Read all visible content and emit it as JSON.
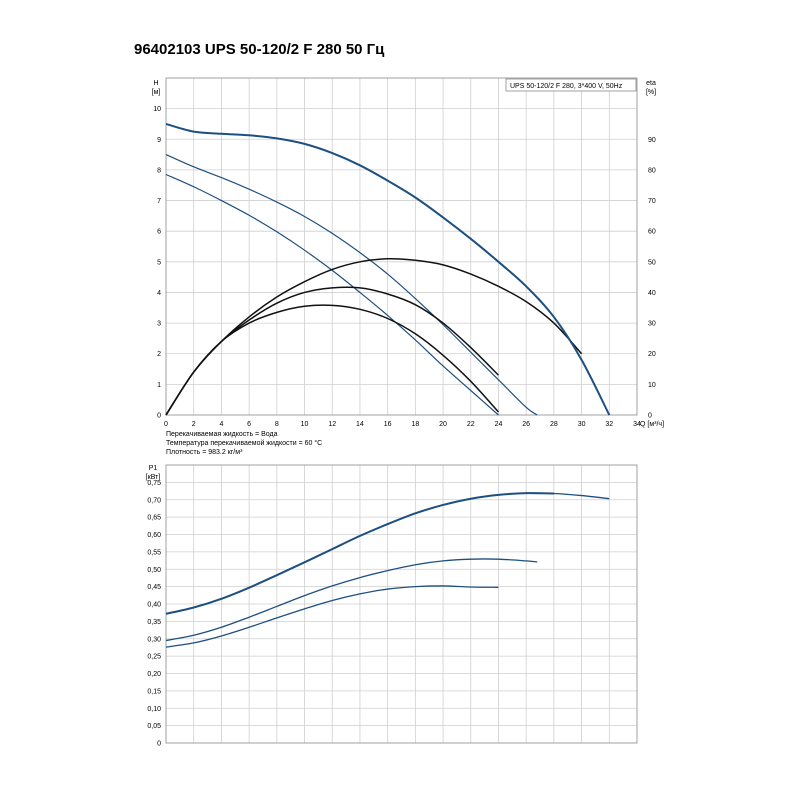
{
  "title": "96402103 UPS 50-120/2 F 280 50 Гц",
  "colors": {
    "head": "#1d4f80",
    "eta": "#111111",
    "power": "#1d4f80",
    "grid": "#cfcfcf"
  },
  "chart_data": [
    {
      "type": "line",
      "x_label": "Q [м³/ч]",
      "y_label": [
        "H",
        "[м]"
      ],
      "y2_label": [
        "eta",
        "[%]"
      ],
      "legend_box": "UPS 50-120/2 F 280, 3*400 V, 50Hz",
      "xlim": [
        0,
        34
      ],
      "ylim": [
        0,
        11
      ],
      "y2lim": [
        0,
        110
      ],
      "x_ticks": [
        0,
        2,
        4,
        6,
        8,
        10,
        12,
        14,
        16,
        18,
        20,
        22,
        24,
        26,
        28,
        30,
        32,
        34
      ],
      "y_ticks": [
        0,
        1,
        2,
        3,
        4,
        5,
        6,
        7,
        8,
        9,
        10
      ],
      "y2_ticks": [
        0,
        10,
        20,
        30,
        40,
        50,
        60,
        70,
        80,
        90
      ],
      "grid": true,
      "series": [
        {
          "axis": "left",
          "kind": "head",
          "x": [
            0,
            2,
            4,
            6,
            8,
            10,
            12,
            14,
            16,
            18,
            20,
            22,
            24,
            26,
            28,
            30,
            32
          ],
          "y": [
            9.5,
            9.25,
            9.18,
            9.13,
            9.03,
            8.85,
            8.55,
            8.15,
            7.65,
            7.1,
            6.45,
            5.75,
            5.0,
            4.2,
            3.2,
            1.8,
            0
          ]
        },
        {
          "axis": "left",
          "kind": "head",
          "x": [
            0,
            2,
            4,
            6,
            8,
            10,
            12,
            14,
            16,
            18,
            20,
            22,
            24,
            26,
            26.8
          ],
          "y": [
            8.5,
            8.1,
            7.75,
            7.37,
            6.95,
            6.48,
            5.93,
            5.3,
            4.6,
            3.8,
            2.95,
            2.05,
            1.15,
            0.25,
            0
          ]
        },
        {
          "axis": "left",
          "kind": "head",
          "x": [
            0,
            2,
            4,
            6,
            8,
            10,
            12,
            14,
            16,
            18,
            20,
            22,
            24
          ],
          "y": [
            7.85,
            7.45,
            7.0,
            6.52,
            5.98,
            5.38,
            4.72,
            4.0,
            3.25,
            2.45,
            1.6,
            0.8,
            0
          ]
        },
        {
          "axis": "right",
          "kind": "eta",
          "x": [
            0,
            2,
            4,
            6,
            8,
            10,
            12,
            14,
            16,
            18,
            20,
            22,
            24,
            26,
            28,
            30
          ],
          "y": [
            0,
            14,
            24,
            32,
            38.5,
            43.5,
            47.5,
            50,
            51,
            50.5,
            49,
            46,
            42,
            37,
            30,
            20
          ]
        },
        {
          "axis": "right",
          "kind": "eta",
          "x": [
            0,
            2,
            4,
            6,
            8,
            10,
            12,
            14,
            16,
            18,
            20,
            22,
            24
          ],
          "y": [
            0,
            14,
            24,
            31,
            36.5,
            40,
            41.5,
            41.5,
            39.5,
            36,
            30,
            22,
            13
          ]
        },
        {
          "axis": "right",
          "kind": "eta",
          "x": [
            0,
            2,
            4,
            6,
            8,
            10,
            12,
            14,
            16,
            18,
            20,
            22,
            24
          ],
          "y": [
            0,
            14,
            24,
            30,
            33.5,
            35.5,
            35.8,
            34.5,
            31.5,
            26.5,
            19.5,
            11,
            1
          ]
        }
      ]
    },
    {
      "type": "line",
      "y_label": [
        "P1",
        "[кВт]"
      ],
      "xlim": [
        0,
        34
      ],
      "ylim": [
        0,
        0.8
      ],
      "y_ticks": [
        0,
        0.05,
        0.1,
        0.15,
        0.2,
        0.25,
        0.3,
        0.35,
        0.4,
        0.45,
        0.5,
        0.55,
        0.6,
        0.65,
        0.7,
        0.75
      ],
      "y_tick_labels": [
        "0",
        "0,05",
        "0,10",
        "0,15",
        "0,20",
        "0,25",
        "0,30",
        "0,35",
        "0,40",
        "0,45",
        "0,50",
        "0,55",
        "0,60",
        "0,65",
        "0,70",
        "0,75"
      ],
      "grid": true,
      "series": [
        {
          "x": [
            0,
            2,
            4,
            6,
            8,
            10,
            12,
            14,
            16,
            18,
            20,
            22,
            24,
            26,
            28,
            30,
            32
          ],
          "y": [
            0.372,
            0.39,
            0.415,
            0.447,
            0.483,
            0.52,
            0.558,
            0.596,
            0.63,
            0.661,
            0.685,
            0.703,
            0.714,
            0.719,
            0.718,
            0.712,
            0.703
          ]
        },
        {
          "x": [
            0,
            2,
            4,
            6,
            8,
            10,
            12,
            14,
            16,
            18,
            20,
            22,
            24,
            26,
            26.8
          ],
          "y": [
            0.295,
            0.31,
            0.333,
            0.362,
            0.393,
            0.424,
            0.452,
            0.476,
            0.496,
            0.513,
            0.524,
            0.529,
            0.529,
            0.524,
            0.521
          ]
        },
        {
          "x": [
            0,
            2,
            4,
            6,
            8,
            10,
            12,
            14,
            16,
            18,
            20,
            22,
            24
          ],
          "y": [
            0.276,
            0.288,
            0.308,
            0.333,
            0.36,
            0.386,
            0.41,
            0.429,
            0.443,
            0.45,
            0.452,
            0.449,
            0.448
          ]
        }
      ]
    }
  ],
  "notes": [
    "Перекачиваемая жидкость = Вода",
    "Температура перекачиваемой жидкости = 60 °C",
    "Плотность = 983.2 кг/м³"
  ]
}
